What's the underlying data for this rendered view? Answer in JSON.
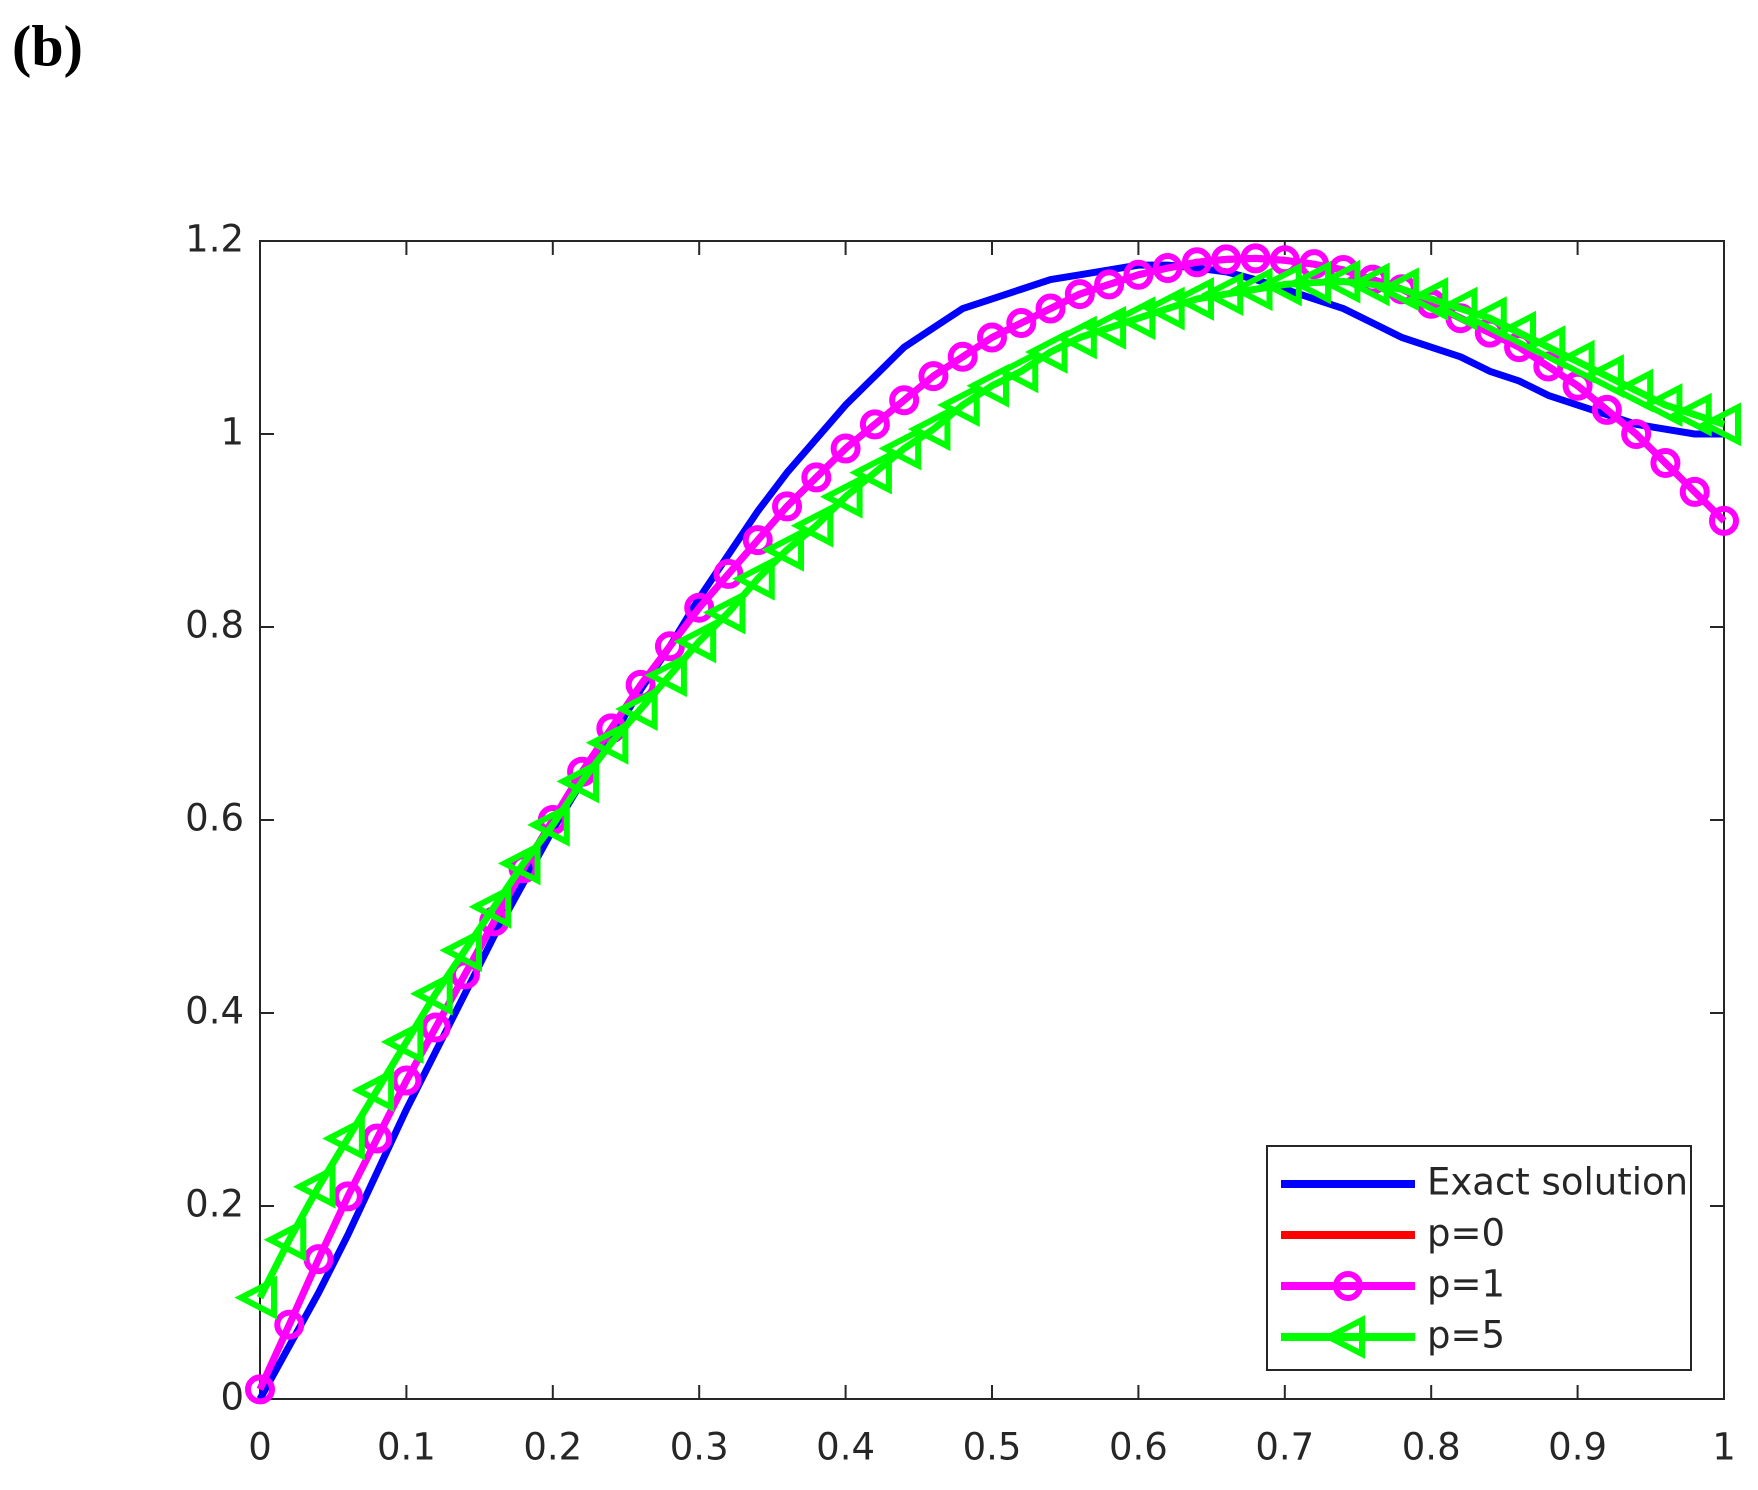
{
  "chart_data": {
    "type": "line",
    "panel_label": "(b)",
    "x": [
      0,
      0.02,
      0.04,
      0.06,
      0.08,
      0.1,
      0.12,
      0.14,
      0.16,
      0.18,
      0.2,
      0.22,
      0.24,
      0.26,
      0.28,
      0.3,
      0.32,
      0.34,
      0.36,
      0.38,
      0.4,
      0.42,
      0.44,
      0.46,
      0.48,
      0.5,
      0.52,
      0.54,
      0.56,
      0.58,
      0.6,
      0.62,
      0.64,
      0.66,
      0.68,
      0.7,
      0.72,
      0.74,
      0.76,
      0.78,
      0.8,
      0.82,
      0.84,
      0.86,
      0.88,
      0.9,
      0.92,
      0.94,
      0.96,
      0.98,
      1
    ],
    "series": [
      {
        "name": "Exact solution",
        "color": "#0000ff",
        "marker": "none",
        "values": [
          0,
          0.055,
          0.11,
          0.17,
          0.235,
          0.3,
          0.36,
          0.42,
          0.48,
          0.535,
          0.59,
          0.64,
          0.685,
          0.735,
          0.78,
          0.83,
          0.875,
          0.92,
          0.96,
          0.995,
          1.03,
          1.06,
          1.09,
          1.11,
          1.13,
          1.14,
          1.15,
          1.16,
          1.165,
          1.17,
          1.175,
          1.175,
          1.172,
          1.168,
          1.16,
          1.15,
          1.14,
          1.13,
          1.115,
          1.1,
          1.09,
          1.08,
          1.065,
          1.055,
          1.04,
          1.03,
          1.02,
          1.01,
          1.005,
          1.0,
          1.0
        ]
      },
      {
        "name": "p=0",
        "color": "#ff0000",
        "marker": "none",
        "values": [
          0.01,
          0.077,
          0.145,
          0.21,
          0.27,
          0.33,
          0.385,
          0.44,
          0.495,
          0.55,
          0.6,
          0.65,
          0.695,
          0.74,
          0.78,
          0.82,
          0.855,
          0.89,
          0.925,
          0.955,
          0.985,
          1.01,
          1.035,
          1.06,
          1.08,
          1.1,
          1.115,
          1.13,
          1.145,
          1.155,
          1.165,
          1.172,
          1.178,
          1.181,
          1.182,
          1.18,
          1.176,
          1.17,
          1.16,
          1.15,
          1.135,
          1.12,
          1.105,
          1.09,
          1.07,
          1.05,
          1.025,
          1.0,
          0.97,
          0.94,
          0.91
        ]
      },
      {
        "name": "p=1",
        "color": "#ff00ff",
        "marker": "circle",
        "values": [
          0.01,
          0.077,
          0.145,
          0.21,
          0.27,
          0.33,
          0.385,
          0.44,
          0.495,
          0.55,
          0.6,
          0.65,
          0.695,
          0.74,
          0.78,
          0.82,
          0.855,
          0.89,
          0.925,
          0.955,
          0.985,
          1.01,
          1.035,
          1.06,
          1.08,
          1.1,
          1.115,
          1.13,
          1.145,
          1.155,
          1.165,
          1.172,
          1.178,
          1.181,
          1.182,
          1.18,
          1.176,
          1.17,
          1.16,
          1.15,
          1.135,
          1.12,
          1.105,
          1.09,
          1.07,
          1.05,
          1.025,
          1.0,
          0.97,
          0.94,
          0.91
        ]
      },
      {
        "name": "p=5",
        "color": "#00ff00",
        "marker": "triangle-left",
        "values": [
          0.105,
          0.165,
          0.22,
          0.27,
          0.32,
          0.37,
          0.42,
          0.465,
          0.51,
          0.555,
          0.595,
          0.64,
          0.68,
          0.715,
          0.75,
          0.785,
          0.815,
          0.85,
          0.88,
          0.905,
          0.935,
          0.96,
          0.985,
          1.005,
          1.03,
          1.05,
          1.065,
          1.085,
          1.1,
          1.11,
          1.12,
          1.13,
          1.14,
          1.145,
          1.15,
          1.155,
          1.157,
          1.158,
          1.155,
          1.15,
          1.14,
          1.13,
          1.12,
          1.105,
          1.09,
          1.075,
          1.06,
          1.045,
          1.03,
          1.02,
          1.01
        ]
      }
    ],
    "xlim": [
      0,
      1
    ],
    "xticks": [
      0,
      0.1,
      0.2,
      0.3,
      0.4,
      0.5,
      0.6,
      0.7,
      0.8,
      0.9,
      1
    ],
    "ylim": [
      0,
      1.2
    ],
    "yticks": [
      0,
      0.2,
      0.4,
      0.6,
      0.8,
      1,
      1.2
    ],
    "legend": "lower right",
    "grid": false
  }
}
